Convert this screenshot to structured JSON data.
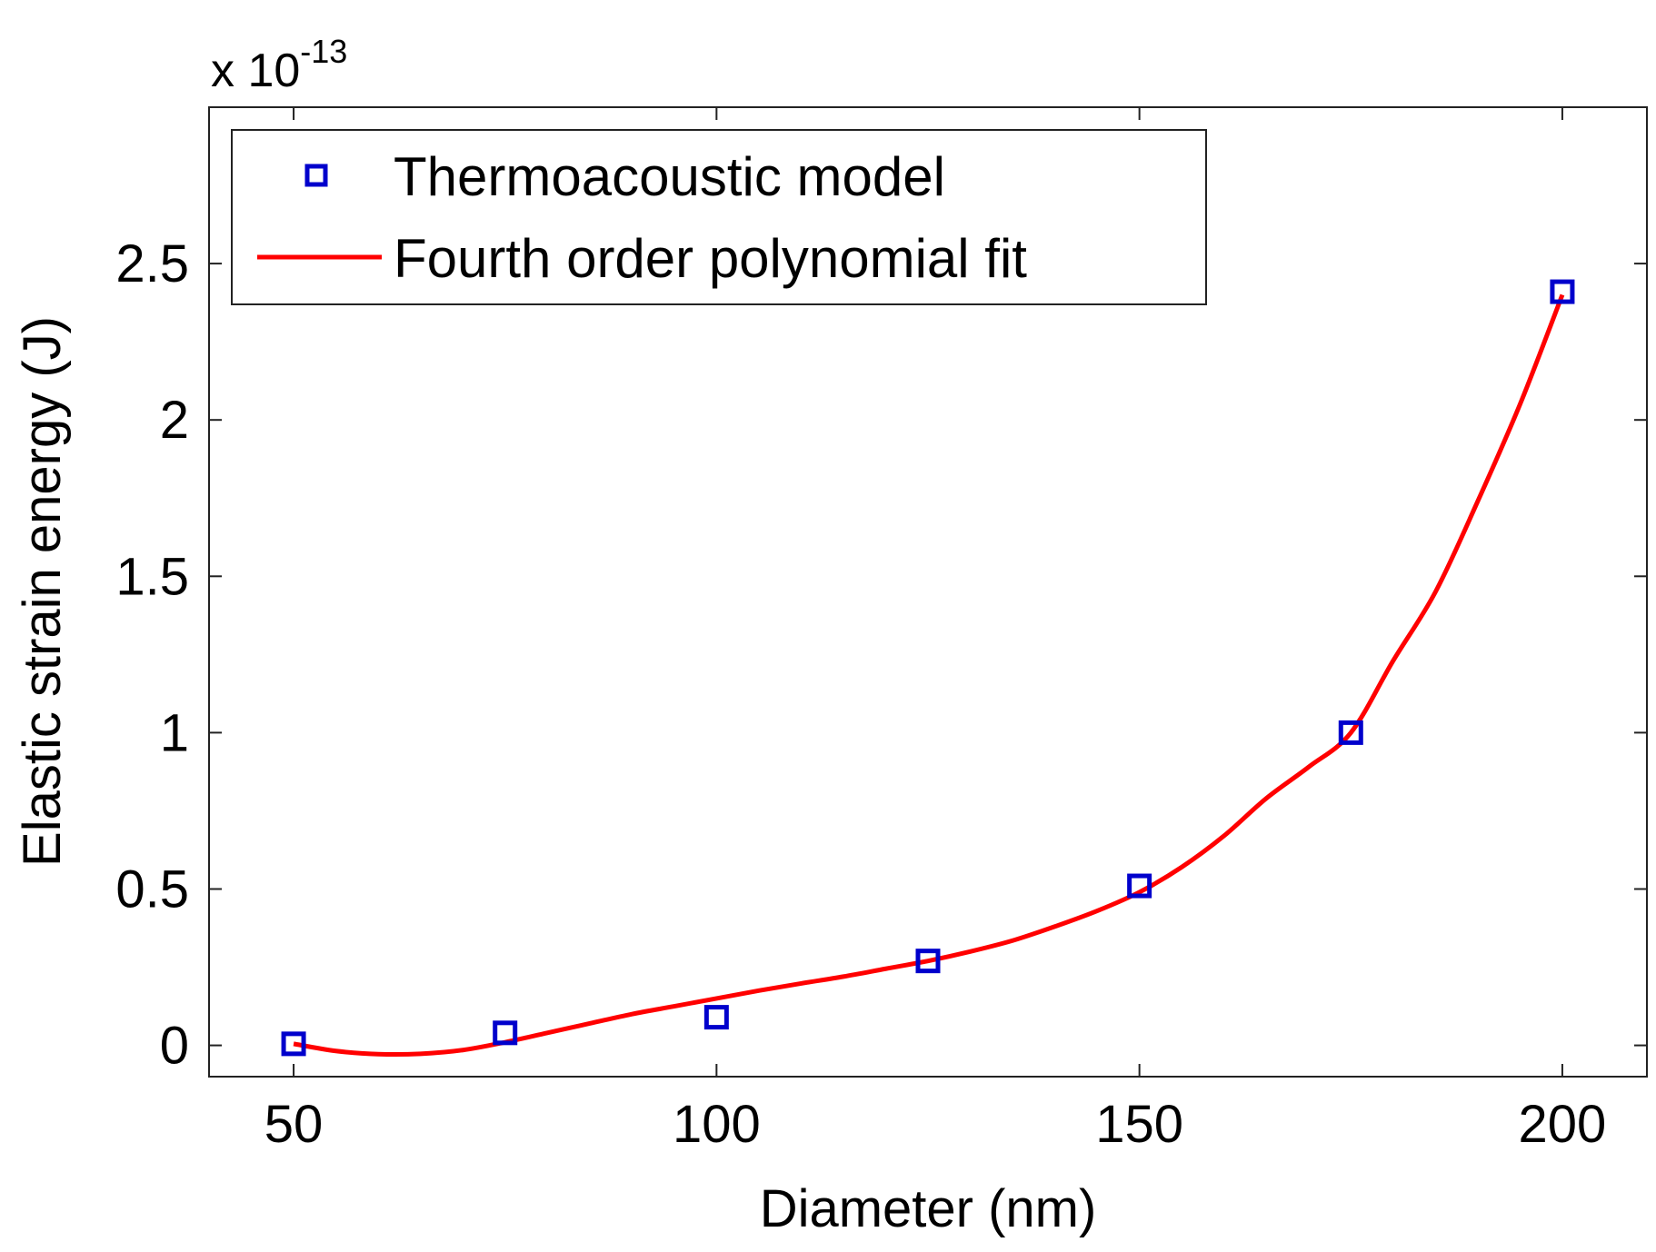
{
  "chart_data": {
    "type": "scatter",
    "title": "",
    "xlabel": "Diameter (nm)",
    "ylabel": "Elastic strain energy (J)",
    "y_multiplier_base": "x 10",
    "y_multiplier_exponent": "-13",
    "xlim": [
      40,
      210
    ],
    "ylim": [
      -0.1,
      3.0
    ],
    "xticks": [
      50,
      100,
      150,
      200
    ],
    "xtick_labels": [
      "50",
      "100",
      "150",
      "200"
    ],
    "yticks": [
      0,
      0.5,
      1,
      1.5,
      2,
      2.5
    ],
    "ytick_labels": [
      "0",
      "0.5",
      "1",
      "1.5",
      "2",
      "2.5"
    ],
    "grid": false,
    "legend_position": "top-left",
    "series": [
      {
        "name": "Thermoacoustic model",
        "kind": "markers",
        "marker": "square",
        "color": "#0000cc",
        "x": [
          50,
          75,
          100,
          125,
          150,
          175,
          200
        ],
        "y": [
          0.005,
          0.04,
          0.09,
          0.27,
          0.51,
          1.0,
          2.41
        ]
      },
      {
        "name": "Fourth order polynomial fit",
        "kind": "line",
        "color": "#ff0000",
        "x": [
          50,
          55,
          60,
          65,
          70,
          75,
          80,
          85,
          90,
          95,
          100,
          105,
          110,
          115,
          120,
          125,
          130,
          135,
          140,
          145,
          150,
          155,
          160,
          165,
          170,
          175,
          180,
          185,
          190,
          195,
          200
        ],
        "y": [
          0.005,
          -0.018,
          -0.028,
          -0.027,
          -0.015,
          0.01,
          0.04,
          0.07,
          0.1,
          0.125,
          0.15,
          0.175,
          0.198,
          0.22,
          0.245,
          0.27,
          0.3,
          0.335,
          0.38,
          0.43,
          0.49,
          0.57,
          0.67,
          0.79,
          0.89,
          1.0,
          1.23,
          1.45,
          1.74,
          2.05,
          2.4
        ]
      }
    ]
  }
}
